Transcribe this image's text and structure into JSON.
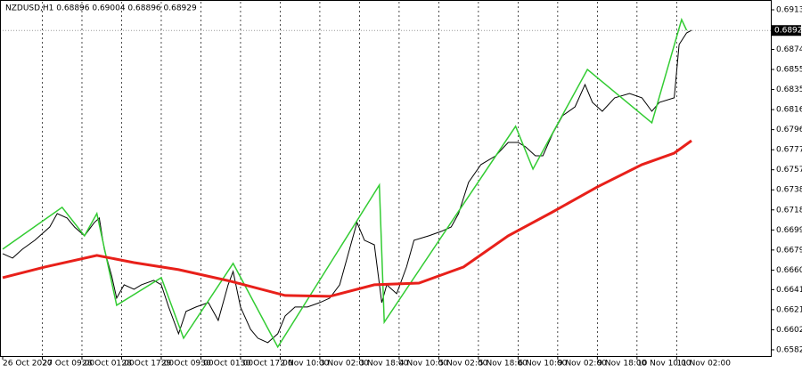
{
  "chart_data": {
    "type": "line",
    "title": "NZDUSD,H1  0.68896 0.69004 0.68896 0.68929",
    "xlim": [
      0,
      310
    ],
    "xticks": [
      {
        "value": 0,
        "label": "26 Oct 2020"
      },
      {
        "value": 16,
        "label": "27 Oct 09:00"
      },
      {
        "value": 32,
        "label": "28 Oct 01:00"
      },
      {
        "value": 48,
        "label": "28 Oct 17:00"
      },
      {
        "value": 64,
        "label": "29 Oct 09:00"
      },
      {
        "value": 80,
        "label": "30 Oct 01:00"
      },
      {
        "value": 96,
        "label": "30 Oct 17:00"
      },
      {
        "value": 112,
        "label": "2 Nov 10:00"
      },
      {
        "value": 128,
        "label": "3 Nov 02:00"
      },
      {
        "value": 144,
        "label": "3 Nov 18:00"
      },
      {
        "value": 160,
        "label": "4 Nov 10:00"
      },
      {
        "value": 176,
        "label": "5 Nov 02:00"
      },
      {
        "value": 192,
        "label": "5 Nov 18:00"
      },
      {
        "value": 208,
        "label": "6 Nov 10:00"
      },
      {
        "value": 224,
        "label": "9 Nov 02:00"
      },
      {
        "value": 240,
        "label": "9 Nov 18:00"
      },
      {
        "value": 256,
        "label": "10 Nov 10:00"
      },
      {
        "value": 272,
        "label": "11 Nov 02:00"
      }
    ],
    "ylim": [
      0.65764,
      0.69208
    ],
    "yticks": [
      {
        "value": 0.6913,
        "label": "0.69130"
      },
      {
        "value": 0.68745,
        "label": "0.68745"
      },
      {
        "value": 0.6855,
        "label": "0.68550"
      },
      {
        "value": 0.68355,
        "label": "0.68355"
      },
      {
        "value": 0.6816,
        "label": "0.68160"
      },
      {
        "value": 0.67965,
        "label": "0.67965"
      },
      {
        "value": 0.6777,
        "label": "0.67770"
      },
      {
        "value": 0.67575,
        "label": "0.67575"
      },
      {
        "value": 0.6738,
        "label": "0.67380"
      },
      {
        "value": 0.67185,
        "label": "0.67185"
      },
      {
        "value": 0.6699,
        "label": "0.66990"
      },
      {
        "value": 0.66795,
        "label": "0.66795"
      },
      {
        "value": 0.666,
        "label": "0.66600"
      },
      {
        "value": 0.6641,
        "label": "0.66410"
      },
      {
        "value": 0.66215,
        "label": "0.66215"
      },
      {
        "value": 0.6602,
        "label": "0.66020"
      },
      {
        "value": 0.65825,
        "label": "0.65825"
      }
    ],
    "grid": "x",
    "current_price": {
      "value": 0.68929,
      "label": "0.68929"
    },
    "series": [
      {
        "color": "#000000",
        "x": [
          0,
          4,
          8,
          13,
          19,
          22,
          26,
          29,
          33,
          37,
          39,
          41,
          44,
          46,
          49,
          53,
          56,
          61,
          64,
          67,
          71,
          74,
          78,
          83,
          87,
          91,
          93,
          96,
          100,
          103,
          107,
          111,
          114,
          118,
          123,
          128,
          132,
          136,
          139,
          143,
          146,
          150,
          153,
          155,
          159,
          163,
          166,
          172,
          177,
          181,
          184,
          188,
          193,
          199,
          204,
          208,
          211,
          215,
          218,
          222,
          226,
          231,
          235,
          238,
          242,
          247,
          253,
          258,
          262,
          265,
          271,
          273,
          276,
          278
        ],
        "values": [
          0.6676,
          0.66717,
          0.66803,
          0.6689,
          0.67019,
          0.67149,
          0.67106,
          0.67019,
          0.66933,
          0.67063,
          0.67106,
          0.66803,
          0.66544,
          0.66327,
          0.66457,
          0.66414,
          0.66457,
          0.665,
          0.66457,
          0.66241,
          0.65981,
          0.66198,
          0.66241,
          0.66284,
          0.66111,
          0.66457,
          0.66587,
          0.66241,
          0.66025,
          0.65938,
          0.65895,
          0.65981,
          0.66154,
          0.66241,
          0.66241,
          0.66284,
          0.66327,
          0.66457,
          0.66717,
          0.67063,
          0.6689,
          0.66846,
          0.66284,
          0.66457,
          0.66371,
          0.6663,
          0.6689,
          0.66933,
          0.66976,
          0.67019,
          0.67149,
          0.67452,
          0.67625,
          0.67711,
          0.67841,
          0.67841,
          0.67798,
          0.67711,
          0.67711,
          0.67928,
          0.68101,
          0.68187,
          0.68403,
          0.6823,
          0.68144,
          0.68274,
          0.68317,
          0.68274,
          0.68144,
          0.6823,
          0.68274,
          0.68793,
          0.68905,
          0.68931
        ]
      },
      {
        "color": "#33cc33",
        "x": [
          0,
          24,
          33,
          38,
          46,
          64,
          73,
          93,
          111,
          152,
          154,
          207,
          214,
          236,
          262,
          274,
          276
        ],
        "values": [
          0.66803,
          0.6721,
          0.66933,
          0.67149,
          0.66258,
          0.66526,
          0.65938,
          0.66665,
          0.65852,
          0.67426,
          0.66094,
          0.67997,
          0.67582,
          0.6855,
          0.68031,
          0.69035,
          0.68931
        ]
      },
      {
        "color": "#e8201a",
        "x": [
          0,
          17,
          38,
          53,
          71,
          92,
          114,
          132,
          150,
          168,
          186,
          204,
          222,
          240,
          258,
          271,
          278
        ],
        "values": [
          0.66526,
          0.6663,
          0.66743,
          0.66673,
          0.66604,
          0.66492,
          0.66353,
          0.66345,
          0.66457,
          0.66474,
          0.6663,
          0.66933,
          0.67166,
          0.67409,
          0.67625,
          0.67737,
          0.67858
        ]
      }
    ]
  }
}
